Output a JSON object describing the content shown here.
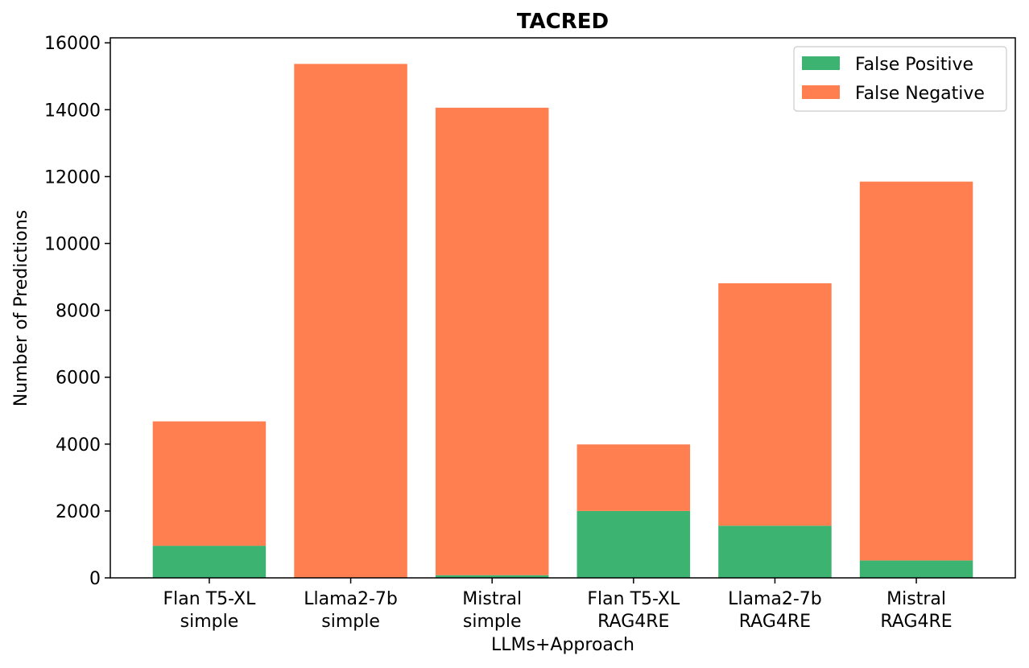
{
  "chart_data": {
    "type": "bar",
    "stacked": true,
    "title": "TACRED",
    "xlabel": "LLMs+Approach",
    "ylabel": "Number of Predictions",
    "categories": [
      [
        "Flan T5-XL",
        "simple"
      ],
      [
        "Llama2-7b",
        "simple"
      ],
      [
        "Mistral",
        "simple"
      ],
      [
        "Flan T5-XL",
        "RAG4RE"
      ],
      [
        "Llama2-7b",
        "RAG4RE"
      ],
      [
        "Mistral",
        "RAG4RE"
      ]
    ],
    "series": [
      {
        "name": "False Positive",
        "color": "#3cb371",
        "values": [
          960,
          0,
          80,
          2000,
          1560,
          520
        ]
      },
      {
        "name": "False Negative",
        "color": "#ff7f50",
        "values": [
          3720,
          15370,
          13980,
          1990,
          7250,
          11330
        ]
      }
    ],
    "ylim": [
      0,
      16150
    ],
    "yticks": [
      0,
      2000,
      4000,
      6000,
      8000,
      10000,
      12000,
      14000,
      16000
    ],
    "grid": false,
    "legend": "top-right"
  }
}
